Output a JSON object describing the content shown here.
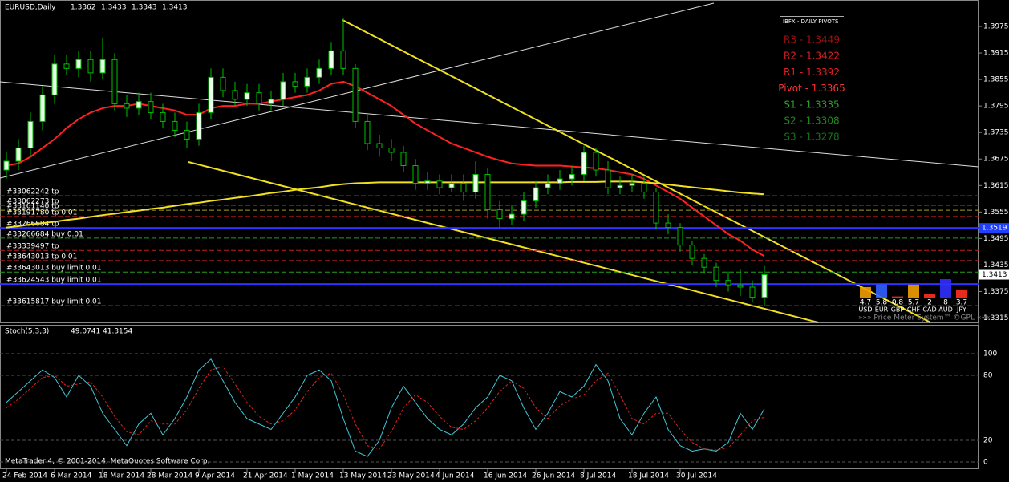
{
  "chart": {
    "type": "candlestick",
    "symbol": "EURUSD,Daily",
    "header_ohlc": [
      1.3362,
      1.3433,
      1.3343,
      1.3413
    ],
    "ylim": [
      1.3305,
      1.4035
    ],
    "yticks": [
      1.3975,
      1.3915,
      1.3855,
      1.3795,
      1.3735,
      1.3675,
      1.3615,
      1.3555,
      1.3495,
      1.3435,
      1.3375,
      1.3315
    ],
    "dates": [
      "24 Feb 2014",
      "6 Mar 2014",
      "18 Mar 2014",
      "28 Mar 2014",
      "9 Apr 2014",
      "21 Apr 2014",
      "1 May 2014",
      "13 May 2014",
      "23 May 2014",
      "4 Jun 2014",
      "16 Jun 2014",
      "26 Jun 2014",
      "8 Jul 2014",
      "18 Jul 2014",
      "30 Jul 2014"
    ],
    "open": [
      1.365,
      1.367,
      1.37,
      1.376,
      1.382,
      1.389,
      1.388,
      1.39,
      1.387,
      1.39,
      1.38,
      1.379,
      1.3805,
      1.378,
      1.376,
      1.374,
      1.372,
      1.378,
      1.386,
      1.383,
      1.381,
      1.3825,
      1.38,
      1.381,
      1.385,
      1.384,
      1.386,
      1.388,
      1.392,
      1.388,
      1.376,
      1.371,
      1.37,
      1.369,
      1.366,
      1.362,
      1.3625,
      1.361,
      1.362,
      1.36,
      1.364,
      1.356,
      1.354,
      1.355,
      1.358,
      1.361,
      1.362,
      1.363,
      1.364,
      1.369,
      1.365,
      1.361,
      1.3615,
      1.362,
      1.36,
      1.353,
      1.352,
      1.348,
      1.345,
      1.343,
      1.34,
      1.339,
      1.3385,
      1.3362
    ],
    "high": [
      1.369,
      1.372,
      1.378,
      1.384,
      1.391,
      1.391,
      1.392,
      1.392,
      1.395,
      1.3915,
      1.382,
      1.3825,
      1.3825,
      1.38,
      1.378,
      1.376,
      1.38,
      1.388,
      1.388,
      1.385,
      1.3845,
      1.3845,
      1.383,
      1.387,
      1.387,
      1.388,
      1.39,
      1.394,
      1.3993,
      1.389,
      1.3775,
      1.373,
      1.372,
      1.3705,
      1.3675,
      1.3645,
      1.364,
      1.364,
      1.364,
      1.367,
      1.3655,
      1.358,
      1.357,
      1.36,
      1.3625,
      1.364,
      1.365,
      1.366,
      1.3705,
      1.37,
      1.367,
      1.3635,
      1.364,
      1.3635,
      1.361,
      1.355,
      1.353,
      1.349,
      1.346,
      1.344,
      1.342,
      1.3425,
      1.34,
      1.3433
    ],
    "low": [
      1.363,
      1.365,
      1.368,
      1.374,
      1.38,
      1.3865,
      1.386,
      1.385,
      1.3855,
      1.3785,
      1.377,
      1.3775,
      1.3765,
      1.3745,
      1.3725,
      1.37,
      1.3705,
      1.3765,
      1.3815,
      1.3795,
      1.3795,
      1.3785,
      1.3785,
      1.3795,
      1.3825,
      1.3825,
      1.3845,
      1.3865,
      1.3865,
      1.3745,
      1.3695,
      1.368,
      1.367,
      1.3645,
      1.3605,
      1.3605,
      1.3595,
      1.36,
      1.358,
      1.3585,
      1.354,
      1.352,
      1.3525,
      1.3535,
      1.3565,
      1.3595,
      1.3605,
      1.3615,
      1.3625,
      1.3635,
      1.3595,
      1.3595,
      1.36,
      1.3585,
      1.3515,
      1.3505,
      1.3465,
      1.3435,
      1.3415,
      1.3385,
      1.3375,
      1.3365,
      1.335,
      1.3343
    ],
    "close": [
      1.367,
      1.37,
      1.376,
      1.382,
      1.389,
      1.388,
      1.39,
      1.387,
      1.39,
      1.38,
      1.379,
      1.3805,
      1.378,
      1.376,
      1.374,
      1.372,
      1.378,
      1.386,
      1.383,
      1.381,
      1.3825,
      1.38,
      1.381,
      1.385,
      1.384,
      1.386,
      1.388,
      1.392,
      1.388,
      1.376,
      1.371,
      1.37,
      1.369,
      1.366,
      1.362,
      1.3625,
      1.361,
      1.362,
      1.36,
      1.364,
      1.356,
      1.354,
      1.355,
      1.358,
      1.361,
      1.362,
      1.363,
      1.364,
      1.369,
      1.365,
      1.361,
      1.3615,
      1.362,
      1.36,
      1.353,
      1.352,
      1.348,
      1.345,
      1.343,
      1.34,
      1.339,
      1.3385,
      1.3362,
      1.3413
    ],
    "ma": [
      {
        "color": "#ff2020",
        "values": [
          1.366,
          1.3665,
          1.368,
          1.37,
          1.372,
          1.3745,
          1.3765,
          1.378,
          1.379,
          1.3795,
          1.3795,
          1.38,
          1.3795,
          1.379,
          1.3785,
          1.3775,
          1.3775,
          1.379,
          1.3795,
          1.3795,
          1.38,
          1.38,
          1.3805,
          1.381,
          1.3815,
          1.382,
          1.383,
          1.3845,
          1.385,
          1.384,
          1.3825,
          1.381,
          1.3795,
          1.3775,
          1.3755,
          1.374,
          1.3725,
          1.371,
          1.37,
          1.369,
          1.368,
          1.3672,
          1.3665,
          1.3662,
          1.366,
          1.366,
          1.366,
          1.3658,
          1.3656,
          1.3654,
          1.365,
          1.3645,
          1.364,
          1.363,
          1.3615,
          1.36,
          1.3585,
          1.3565,
          1.3545,
          1.3525,
          1.3505,
          1.349,
          1.347,
          1.3455
        ]
      },
      {
        "color": "#f0e020",
        "values": [
          1.352,
          1.3523,
          1.3527,
          1.353,
          1.3533,
          1.3537,
          1.354,
          1.3544,
          1.3548,
          1.3551,
          1.3555,
          1.3558,
          1.3562,
          1.3565,
          1.3569,
          1.3573,
          1.3576,
          1.358,
          1.3583,
          1.3587,
          1.359,
          1.3594,
          1.3598,
          1.3601,
          1.3605,
          1.3608,
          1.3611,
          1.3615,
          1.3618,
          1.362,
          1.3621,
          1.3622,
          1.3622,
          1.3622,
          1.3622,
          1.3622,
          1.3622,
          1.3622,
          1.3622,
          1.3622,
          1.3622,
          1.3622,
          1.3622,
          1.3622,
          1.3622,
          1.3622,
          1.3622,
          1.3623,
          1.3623,
          1.3623,
          1.3624,
          1.3624,
          1.3624,
          1.3622,
          1.362,
          1.3617,
          1.3614,
          1.3611,
          1.3608,
          1.3605,
          1.3602,
          1.3599,
          1.3597,
          1.3595
        ]
      }
    ],
    "orders": [
      {
        "label": "#33062242 tp",
        "price": 1.3592,
        "color": "#c02020"
      },
      {
        "label": "#33062273 tp",
        "price": 1.357,
        "color": "#c02020"
      },
      {
        "label": "#33161140 tp",
        "price": 1.3559,
        "color": "#a0a020"
      },
      {
        "label": "#33191780 tp 0.01",
        "price": 1.3545,
        "color": "#c02020"
      },
      {
        "label": "#33266684 tp",
        "price": 1.3519,
        "color": "#3030ff"
      },
      {
        "label": "#33266684 buy 0.01",
        "price": 1.3496,
        "color": "#20a020"
      },
      {
        "label": "#33339497 tp",
        "price": 1.3468,
        "color": "#c02020"
      },
      {
        "label": "#33643013 tp 0.01",
        "price": 1.3445,
        "color": "#c02020"
      },
      {
        "label": "#33643013 buy limit 0.01",
        "price": 1.3419,
        "color": "#20a020"
      },
      {
        "label": "#33624543 buy limit 0.01",
        "price": 1.3392,
        "color": "#3030ff"
      },
      {
        "label": "#33615817 buy limit 0.01",
        "price": 1.3343,
        "color": "#20a020"
      }
    ],
    "price_labels": [
      {
        "value": 1.3519,
        "color": "#2040ff"
      },
      {
        "value": 1.3413,
        "color": "#ffffff"
      }
    ]
  },
  "pivots": {
    "title": "IBFX - DAILY PIVOTS",
    "levels": [
      {
        "label": "R3 - 1.3449",
        "color": "#a01010"
      },
      {
        "label": "R2 - 1.3422",
        "color": "#e02020"
      },
      {
        "label": "R1 - 1.3392",
        "color": "#e02020"
      },
      {
        "label": "Pivot - 1.3365",
        "color": "#ff3030"
      },
      {
        "label": "S1 - 1.3335",
        "color": "#30a030"
      },
      {
        "label": "S2 - 1.3308",
        "color": "#208a20"
      },
      {
        "label": "S3 - 1.3278",
        "color": "#187018"
      }
    ]
  },
  "price_meter": {
    "currencies": [
      "USD",
      "EUR",
      "GBP",
      "CHF",
      "CAD",
      "AUD",
      "JPY"
    ],
    "values": [
      4.7,
      5.8,
      0.8,
      5.7,
      2.0,
      8.0,
      3.7
    ],
    "caption": "»»» Price Meter System™ ©GPL «««"
  },
  "stoch": {
    "name": "Stoch(5,3,3)",
    "ylim": [
      0,
      100
    ],
    "yticks": [
      100,
      80,
      20,
      0
    ],
    "k": [
      55,
      65,
      75,
      85,
      78,
      60,
      80,
      70,
      45,
      30,
      15,
      35,
      45,
      25,
      40,
      60,
      85,
      95,
      75,
      55,
      40,
      35,
      30,
      45,
      60,
      80,
      85,
      75,
      40,
      10,
      5,
      20,
      50,
      70,
      55,
      40,
      30,
      25,
      35,
      50,
      60,
      80,
      75,
      50,
      30,
      45,
      65,
      60,
      70,
      90,
      75,
      40,
      25,
      45,
      60,
      30,
      15,
      10,
      12,
      10,
      18,
      45,
      30,
      49.0741
    ],
    "d": [
      50,
      58,
      68,
      78,
      80,
      70,
      72,
      74,
      60,
      42,
      28,
      25,
      38,
      35,
      35,
      48,
      68,
      85,
      88,
      72,
      55,
      42,
      35,
      38,
      48,
      65,
      78,
      82,
      62,
      35,
      15,
      12,
      28,
      50,
      62,
      55,
      42,
      32,
      30,
      38,
      50,
      65,
      75,
      68,
      50,
      40,
      52,
      58,
      62,
      75,
      82,
      62,
      40,
      35,
      45,
      45,
      30,
      18,
      12,
      11,
      13,
      25,
      38,
      41.3154
    ]
  },
  "footer": "MetaTrader 4, © 2001-2014, MetaQuotes Software Corp."
}
